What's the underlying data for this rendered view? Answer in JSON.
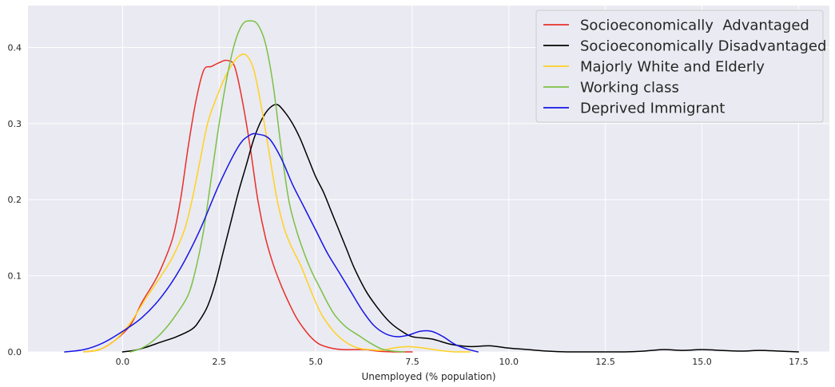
{
  "chart_data": {
    "type": "line",
    "title": "",
    "xlabel": "Unemployed (% population)",
    "ylabel": "",
    "xlim": [
      -2.45,
      18.3
    ],
    "ylim": [
      0,
      0.455
    ],
    "xticks": [
      0.0,
      2.5,
      5.0,
      7.5,
      10.0,
      12.5,
      15.0,
      17.5
    ],
    "xtick_labels": [
      "0.0",
      "2.5",
      "5.0",
      "7.5",
      "10.0",
      "12.5",
      "15.0",
      "17.5"
    ],
    "yticks": [
      0.0,
      0.1,
      0.2,
      0.3,
      0.4
    ],
    "ytick_labels": [
      "0.0",
      "0.1",
      "0.2",
      "0.3",
      "0.4"
    ],
    "grid": true,
    "legend_position": "top-right",
    "series": [
      {
        "name": "Socioeconomically  Advantaged",
        "color": "#e8302a",
        "x": [
          -1.0,
          -0.6,
          -0.2,
          0.2,
          0.5,
          0.8,
          1.0,
          1.3,
          1.5,
          1.7,
          1.9,
          2.1,
          2.3,
          2.5,
          2.7,
          2.9,
          3.1,
          3.3,
          3.5,
          3.7,
          3.9,
          4.1,
          4.3,
          4.5,
          4.7,
          4.9,
          5.1,
          5.4,
          5.7,
          6.0,
          6.3,
          6.6,
          7.0,
          7.5
        ],
        "y": [
          0.0,
          0.003,
          0.015,
          0.035,
          0.065,
          0.09,
          0.11,
          0.15,
          0.2,
          0.27,
          0.33,
          0.37,
          0.375,
          0.38,
          0.383,
          0.375,
          0.33,
          0.27,
          0.2,
          0.15,
          0.115,
          0.088,
          0.065,
          0.045,
          0.03,
          0.018,
          0.01,
          0.005,
          0.003,
          0.003,
          0.003,
          0.001,
          0.0,
          0.0
        ]
      },
      {
        "name": "Socioeconomically Disadvantaged",
        "color": "#000000",
        "x": [
          0.0,
          0.3,
          0.6,
          1.0,
          1.4,
          1.8,
          2.0,
          2.2,
          2.4,
          2.6,
          2.8,
          3.0,
          3.2,
          3.4,
          3.6,
          3.8,
          4.0,
          4.2,
          4.4,
          4.6,
          4.8,
          5.0,
          5.2,
          5.4,
          5.6,
          5.8,
          6.0,
          6.3,
          6.6,
          6.9,
          7.2,
          7.5,
          8.0,
          8.5,
          9.0,
          9.5,
          10.0,
          10.5,
          11.0,
          11.5,
          12.0,
          12.5,
          13.0,
          13.5,
          14.0,
          14.5,
          15.0,
          15.5,
          16.0,
          16.5,
          17.0,
          17.5
        ],
        "y": [
          0.0,
          0.002,
          0.006,
          0.013,
          0.02,
          0.03,
          0.042,
          0.06,
          0.09,
          0.13,
          0.17,
          0.21,
          0.245,
          0.28,
          0.305,
          0.32,
          0.325,
          0.315,
          0.3,
          0.28,
          0.255,
          0.23,
          0.21,
          0.185,
          0.16,
          0.135,
          0.11,
          0.08,
          0.058,
          0.04,
          0.028,
          0.02,
          0.017,
          0.01,
          0.007,
          0.008,
          0.005,
          0.003,
          0.001,
          0.0,
          0.0,
          0.0,
          0.0,
          0.001,
          0.003,
          0.002,
          0.003,
          0.002,
          0.001,
          0.002,
          0.001,
          0.0
        ]
      },
      {
        "name": "Majorly White and Elderly",
        "color": "#ffd21f",
        "x": [
          -1.0,
          -0.6,
          -0.2,
          0.2,
          0.6,
          1.0,
          1.3,
          1.6,
          1.8,
          2.0,
          2.2,
          2.4,
          2.6,
          2.8,
          3.0,
          3.2,
          3.4,
          3.6,
          3.8,
          4.0,
          4.2,
          4.4,
          4.6,
          4.8,
          5.0,
          5.2,
          5.5,
          5.8,
          6.1,
          6.4,
          6.7,
          7.0,
          7.4,
          7.8,
          8.2,
          8.6,
          9.0
        ],
        "y": [
          0.0,
          0.003,
          0.015,
          0.038,
          0.07,
          0.1,
          0.125,
          0.16,
          0.2,
          0.25,
          0.3,
          0.33,
          0.355,
          0.375,
          0.388,
          0.39,
          0.37,
          0.32,
          0.26,
          0.2,
          0.16,
          0.135,
          0.115,
          0.09,
          0.065,
          0.045,
          0.025,
          0.012,
          0.005,
          0.003,
          0.002,
          0.005,
          0.007,
          0.005,
          0.002,
          0.0,
          0.0
        ]
      },
      {
        "name": "Working class",
        "color": "#7ac143",
        "x": [
          0.2,
          0.5,
          0.8,
          1.1,
          1.4,
          1.7,
          1.9,
          2.1,
          2.3,
          2.5,
          2.7,
          2.9,
          3.1,
          3.3,
          3.5,
          3.7,
          3.9,
          4.1,
          4.3,
          4.5,
          4.7,
          4.9,
          5.1,
          5.3,
          5.5,
          5.8,
          6.1,
          6.4,
          6.7,
          7.0,
          7.3
        ],
        "y": [
          0.0,
          0.005,
          0.015,
          0.03,
          0.05,
          0.075,
          0.11,
          0.16,
          0.23,
          0.3,
          0.36,
          0.405,
          0.43,
          0.435,
          0.43,
          0.405,
          0.35,
          0.27,
          0.2,
          0.16,
          0.13,
          0.105,
          0.085,
          0.065,
          0.048,
          0.032,
          0.022,
          0.012,
          0.004,
          0.001,
          0.0
        ]
      },
      {
        "name": "Deprived Immigrant",
        "color": "#1515e6",
        "x": [
          -1.5,
          -1.0,
          -0.5,
          0.0,
          0.5,
          1.0,
          1.5,
          2.0,
          2.5,
          3.0,
          3.3,
          3.5,
          3.8,
          4.1,
          4.4,
          4.7,
          5.0,
          5.3,
          5.6,
          5.9,
          6.2,
          6.5,
          6.8,
          7.1,
          7.4,
          7.7,
          8.0,
          8.3,
          8.6,
          8.9,
          9.2
        ],
        "y": [
          0.0,
          0.003,
          0.012,
          0.027,
          0.045,
          0.072,
          0.11,
          0.16,
          0.22,
          0.27,
          0.285,
          0.286,
          0.28,
          0.255,
          0.22,
          0.19,
          0.16,
          0.13,
          0.105,
          0.08,
          0.055,
          0.035,
          0.024,
          0.02,
          0.022,
          0.027,
          0.027,
          0.02,
          0.01,
          0.004,
          0.0
        ]
      }
    ]
  }
}
